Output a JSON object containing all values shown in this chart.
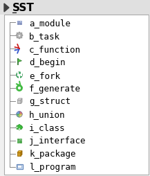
{
  "title": "SST",
  "bg_color": "#f0f0f0",
  "panel_bg": "#ffffff",
  "panel_border": "#aaaaaa",
  "items": [
    {
      "label": "a_module",
      "icon": "module"
    },
    {
      "label": "b_task",
      "icon": "task"
    },
    {
      "label": "c_function",
      "icon": "function"
    },
    {
      "label": "d_begin",
      "icon": "begin"
    },
    {
      "label": "e_fork",
      "icon": "fork"
    },
    {
      "label": "f_generate",
      "icon": "generate"
    },
    {
      "label": "g_struct",
      "icon": "struct"
    },
    {
      "label": "h_union",
      "icon": "union"
    },
    {
      "label": "i_class",
      "icon": "class"
    },
    {
      "label": "j_interface",
      "icon": "interface"
    },
    {
      "label": "k_package",
      "icon": "package"
    },
    {
      "label": "l_program",
      "icon": "program"
    }
  ],
  "title_fontsize": 11,
  "item_fontsize": 9
}
